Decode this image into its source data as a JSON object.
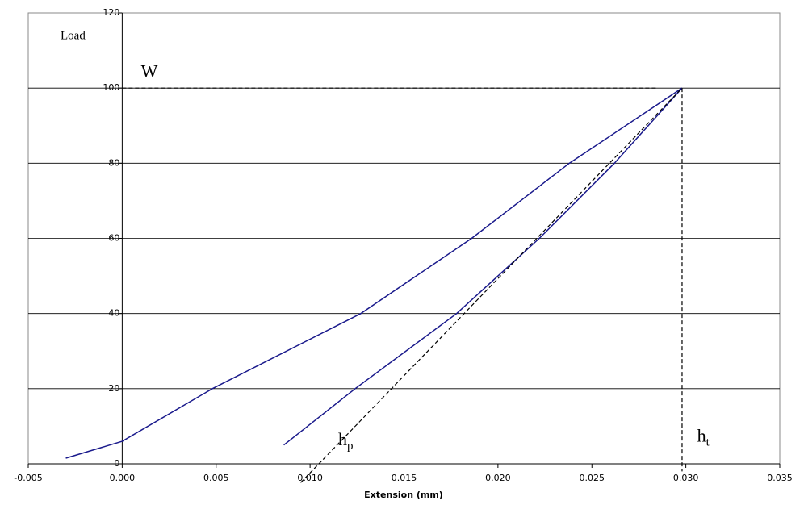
{
  "chart_data": {
    "type": "line",
    "y_label": "Load",
    "x_label": "Extension (mm)",
    "xlim": [
      -0.005,
      0.035
    ],
    "ylim": [
      0,
      120
    ],
    "xticks": [
      {
        "value": -0.005,
        "label": "-0.005"
      },
      {
        "value": 0,
        "label": "0.000"
      },
      {
        "value": 0.005,
        "label": "0.005"
      },
      {
        "value": 0.01,
        "label": "0.010"
      },
      {
        "value": 0.015,
        "label": "0.015"
      },
      {
        "value": 0.02,
        "label": "0.020"
      },
      {
        "value": 0.025,
        "label": "0.025"
      },
      {
        "value": 0.03,
        "label": "0.030"
      },
      {
        "value": 0.035,
        "label": "0.035"
      }
    ],
    "yticks": [
      0,
      20,
      40,
      60,
      80,
      100,
      120
    ],
    "grid": true,
    "series": [
      {
        "color": "#1a1a8c",
        "x": [
          -0.003,
          0,
          0.0048,
          0.0127,
          0.0186,
          0.0238,
          0.0298
        ],
        "values": [
          1.5,
          6,
          20,
          40,
          60,
          80,
          100
        ]
      },
      {
        "color": "#1a1a8c",
        "x": [
          0.0086,
          0.0124,
          0.0178,
          0.0222,
          0.0262,
          0.0298
        ],
        "values": [
          5,
          20,
          40,
          60,
          80,
          100
        ]
      }
    ],
    "guides": [
      {
        "x": [
          0,
          0.0285
        ],
        "values": [
          100,
          100
        ]
      },
      {
        "x": [
          0.0298,
          0.0298
        ],
        "values": [
          100,
          -2
        ]
      },
      {
        "x": [
          0.0095,
          0.0298
        ],
        "values": [
          -5,
          100
        ]
      }
    ],
    "annotations": [
      {
        "text": "W",
        "x": 0.001,
        "y": 104
      },
      {
        "text": "h",
        "sub": "p",
        "x": 0.0115,
        "y": 6
      },
      {
        "text": "h",
        "sub": "t",
        "x": 0.0306,
        "y": 7
      }
    ]
  }
}
